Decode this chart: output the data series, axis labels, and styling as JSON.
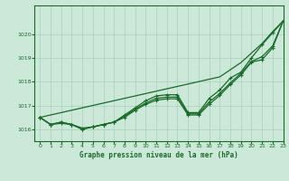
{
  "title": "Graphe pression niveau de la mer (hPa)",
  "background_color": "#cce8d8",
  "grid_color": "#aacfbe",
  "line_color": "#1a6b2a",
  "xlim": [
    -0.5,
    23
  ],
  "ylim": [
    1015.5,
    1021.2
  ],
  "yticks": [
    1016,
    1017,
    1018,
    1019,
    1020
  ],
  "xticks": [
    0,
    1,
    2,
    3,
    4,
    5,
    6,
    7,
    8,
    9,
    10,
    11,
    12,
    13,
    14,
    15,
    16,
    17,
    18,
    19,
    20,
    21,
    22,
    23
  ],
  "x": [
    0,
    1,
    2,
    3,
    4,
    5,
    6,
    7,
    8,
    9,
    10,
    11,
    12,
    13,
    14,
    15,
    16,
    17,
    18,
    19,
    20,
    21,
    22,
    23
  ],
  "y_straight": [
    1016.5,
    1016.6,
    1016.7,
    1016.8,
    1016.9,
    1017.0,
    1017.1,
    1017.2,
    1017.3,
    1017.4,
    1017.5,
    1017.6,
    1017.7,
    1017.8,
    1017.9,
    1018.0,
    1018.1,
    1018.2,
    1018.5,
    1018.8,
    1019.2,
    1019.6,
    1020.1,
    1020.55
  ],
  "y_main": [
    1016.5,
    1016.2,
    1016.3,
    1016.2,
    1016.0,
    1016.1,
    1016.2,
    1016.3,
    1016.6,
    1016.9,
    1017.2,
    1017.4,
    1017.45,
    1017.45,
    1016.7,
    1016.7,
    1017.3,
    1017.65,
    1018.15,
    1018.4,
    1019.0,
    1019.55,
    1020.05,
    1020.55
  ],
  "y_line2": [
    1016.5,
    1016.2,
    1016.3,
    1016.2,
    1016.0,
    1016.1,
    1016.2,
    1016.3,
    1016.55,
    1016.85,
    1017.1,
    1017.3,
    1017.35,
    1017.35,
    1016.65,
    1016.65,
    1017.15,
    1017.5,
    1017.95,
    1018.35,
    1018.85,
    1019.05,
    1019.5,
    1020.55
  ],
  "y_line3": [
    1016.5,
    1016.2,
    1016.25,
    1016.2,
    1016.05,
    1016.1,
    1016.2,
    1016.3,
    1016.5,
    1016.8,
    1017.05,
    1017.22,
    1017.28,
    1017.28,
    1016.6,
    1016.6,
    1017.05,
    1017.42,
    1017.88,
    1018.28,
    1018.82,
    1018.92,
    1019.42,
    1020.55
  ]
}
